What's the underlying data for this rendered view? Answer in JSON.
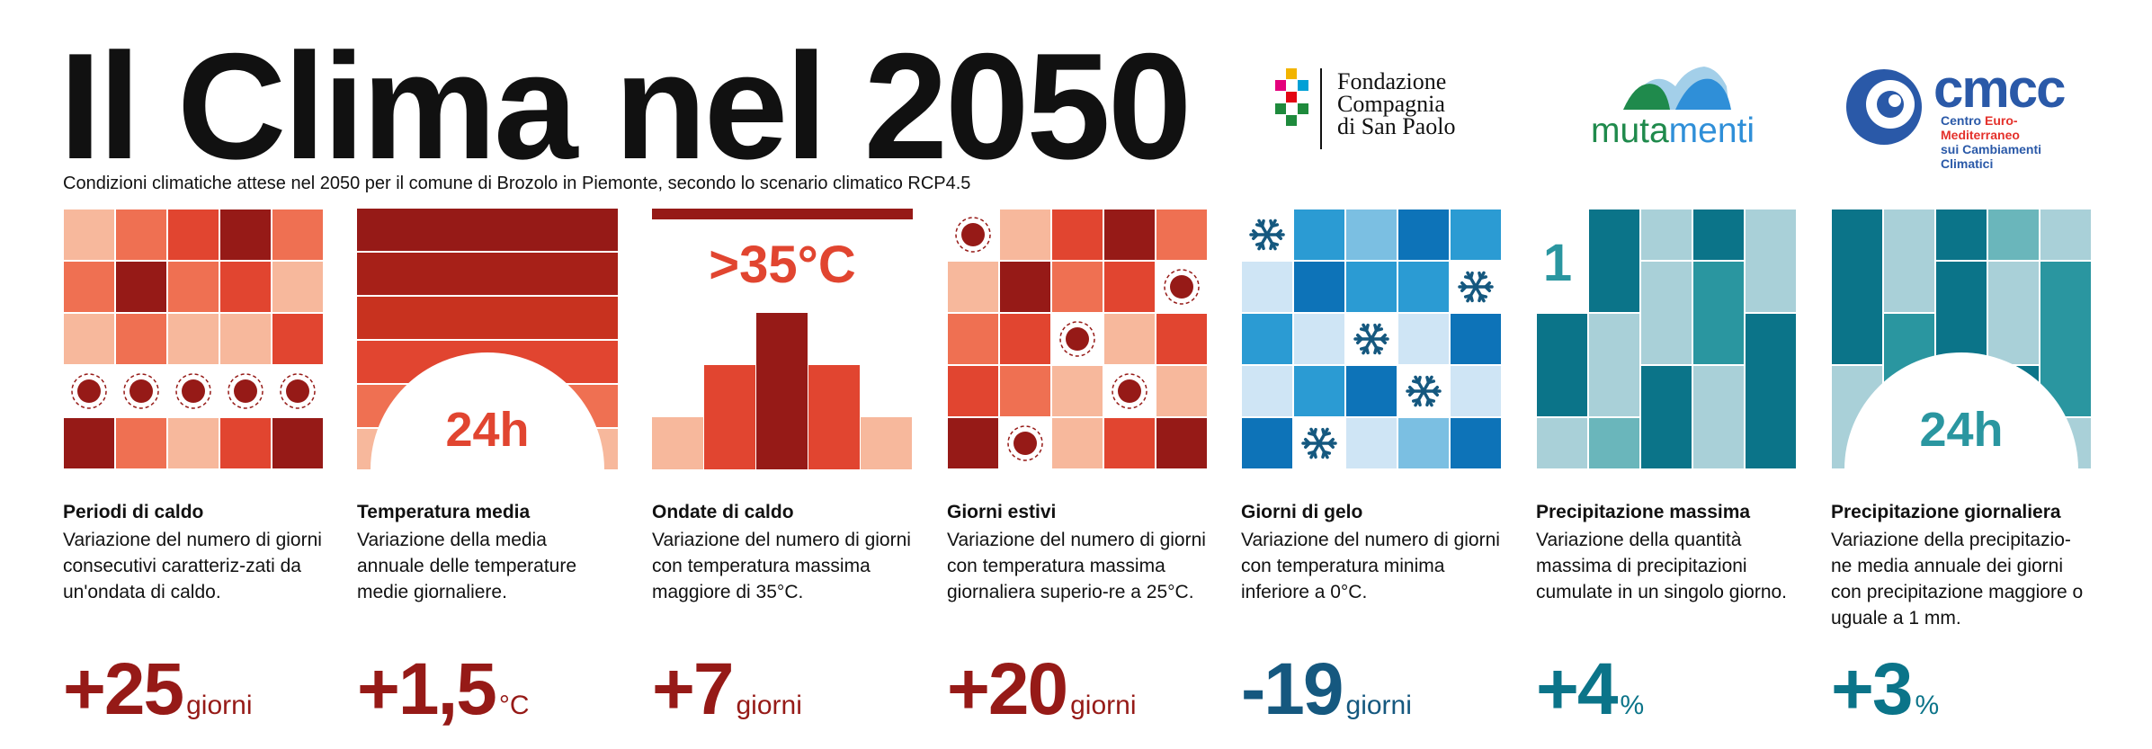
{
  "header": {
    "title": "Il Clima nel 2050",
    "subtitle": "Condizioni climatiche attese nel 2050 per il comune di Brozolo in Piemonte,  secondo lo scenario climatico RCP4.5"
  },
  "logos": {
    "fondazione": {
      "line1": "Fondazione",
      "line2": "Compagnia",
      "line3": "di San Paolo"
    },
    "mutamenti": {
      "text_a": "muta",
      "text_b": "menti"
    },
    "cmcc": {
      "name": "cmcc",
      "line1a": "Centro ",
      "line1b": "Euro-Mediterraneo",
      "line2": "sui Cambiamenti Climatici"
    }
  },
  "colors": {
    "dark_red": "#961a17",
    "red": "#e14530",
    "coral": "#ef7052",
    "light_red": "#f7b89c",
    "dark_teal": "#0b7489",
    "light_blue_grey": "#a9d0d8",
    "navy": "#15587f"
  },
  "indicators": [
    {
      "id": "periodi-di-caldo",
      "title": "Periodi di caldo",
      "description": "Variazione del numero di giorni consecutivi caratteriz-zati da un'ondata di caldo.",
      "value": "+25",
      "unit": "giorni",
      "value_color": "#961a17"
    },
    {
      "id": "temperatura-media",
      "title": "Temperatura media",
      "description": "Variazione della media annuale delle temperature medie giornaliere.",
      "value": "+1,5",
      "unit": "°C",
      "value_color": "#961a17",
      "graphic_label": "24h"
    },
    {
      "id": "ondate-di-caldo",
      "title": "Ondate di caldo",
      "description": "Variazione del numero di giorni con temperatura massima maggiore di 35°C.",
      "value": "+7",
      "unit": "giorni",
      "value_color": "#961a17",
      "graphic_label": ">35°C"
    },
    {
      "id": "giorni-estivi",
      "title": "Giorni estivi",
      "description": "Variazione del numero di giorni con temperatura massima giornaliera superio-re a 25°C.",
      "value": "+20",
      "unit": "giorni",
      "value_color": "#961a17"
    },
    {
      "id": "giorni-di-gelo",
      "title": "Giorni di gelo",
      "description": "Variazione del numero di giorni con temperatura minima inferiore a 0°C.",
      "value": "-19",
      "unit": "giorni",
      "value_color": "#15587f"
    },
    {
      "id": "precipitazione-massima",
      "title": "Precipitazione massima",
      "description": "Variazione della quantità massima di precipitazioni cumulate in un singolo giorno.",
      "value": "+4",
      "unit": "%",
      "value_color": "#0b7489",
      "graphic_label": "1"
    },
    {
      "id": "precipitazione-giornaliera",
      "title": "Precipitazione giornaliera",
      "description": "Variazione della precipitazio-ne media annuale dei giorni con precipitazione maggiore o uguale a 1 mm.",
      "value": "+3",
      "unit": "%",
      "value_color": "#0b7489",
      "graphic_label": "24h"
    }
  ]
}
